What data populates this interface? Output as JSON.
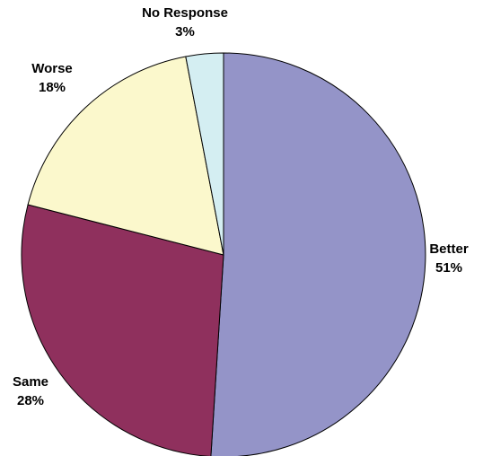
{
  "chart_data": {
    "type": "pie",
    "title": "",
    "slices": [
      {
        "label": "Better",
        "value": 51,
        "value_label": "51%",
        "color": "#9494c8"
      },
      {
        "label": "Same",
        "value": 28,
        "value_label": "28%",
        "color": "#8f305d"
      },
      {
        "label": "Worse",
        "value": 18,
        "value_label": "18%",
        "color": "#fbf8cc"
      },
      {
        "label": "No Response",
        "value": 3,
        "value_label": "3%",
        "color": "#d4eef2"
      }
    ],
    "start": "12 o'clock",
    "direction": "clockwise",
    "legend": "none"
  }
}
